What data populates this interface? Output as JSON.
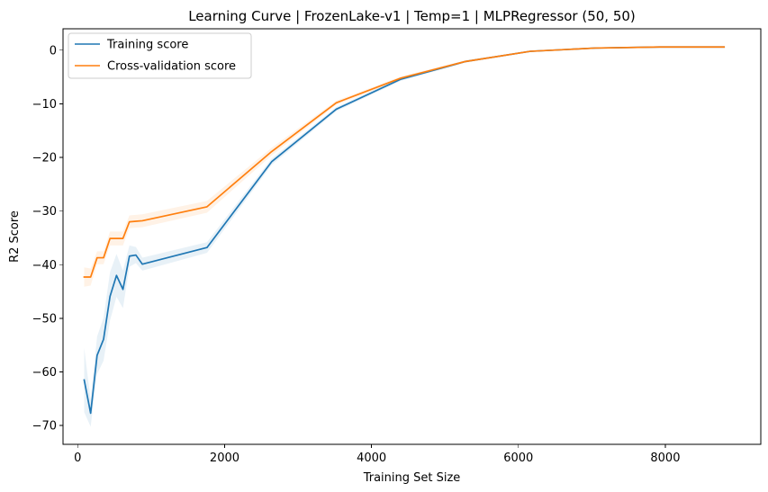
{
  "chart_data": {
    "type": "line",
    "title": "Learning Curve | FrozenLake-v1 | Temp=1 | MLPRegressor (50, 50)",
    "xlabel": "Training Set Size",
    "ylabel": "R2 Score",
    "xlim": [
      -200,
      9300
    ],
    "ylim": [
      -73.5,
      4
    ],
    "xticks": [
      0,
      2000,
      4000,
      6000,
      8000
    ],
    "yticks": [
      0,
      -10,
      -20,
      -30,
      -40,
      -50,
      -60,
      -70
    ],
    "tick_labels": {
      "x": [
        "0",
        "2000",
        "4000",
        "6000",
        "8000"
      ],
      "y": [
        "0",
        "−10",
        "−20",
        "−30",
        "−40",
        "−50",
        "−60",
        "−70"
      ]
    },
    "legend": {
      "placement": "top-left"
    },
    "grid": false,
    "series": [
      {
        "name": "Training score",
        "color": "#1f77b4",
        "band_color": "#1f77b4",
        "x": [
          88,
          176,
          264,
          352,
          440,
          528,
          616,
          704,
          792,
          880,
          1760,
          2640,
          3520,
          4400,
          5280,
          6160,
          7040,
          7920,
          8800
        ],
        "y": [
          -61.5,
          -67.7,
          -56.9,
          -53.9,
          -45.9,
          -42.0,
          -44.6,
          -38.4,
          -38.2,
          -39.9,
          -36.8,
          -20.8,
          -11.0,
          -5.4,
          -2.1,
          -0.2,
          0.4,
          0.6,
          0.6
        ],
        "band": [
          6.0,
          2.5,
          3.5,
          4.0,
          4.5,
          4.0,
          3.5,
          2.0,
          1.5,
          1.2,
          1.0,
          0.6,
          0.4,
          0.3,
          0.2,
          0.1,
          0.05,
          0.05,
          0.05
        ]
      },
      {
        "name": "Cross-validation score",
        "color": "#ff7f0e",
        "band_color": "#ff7f0e",
        "x": [
          88,
          176,
          264,
          352,
          440,
          528,
          616,
          704,
          792,
          880,
          1760,
          2640,
          3520,
          4400,
          5280,
          6160,
          7040,
          7920,
          8800
        ],
        "y": [
          -42.3,
          -42.3,
          -38.7,
          -38.7,
          -35.1,
          -35.1,
          -35.1,
          -32.0,
          -31.9,
          -31.8,
          -29.2,
          -18.9,
          -9.8,
          -5.2,
          -2.1,
          -0.2,
          0.4,
          0.6,
          0.6
        ],
        "band": [
          1.8,
          1.6,
          1.2,
          1.2,
          1.3,
          1.3,
          1.3,
          1.2,
          1.2,
          1.2,
          1.1,
          0.7,
          0.4,
          0.3,
          0.2,
          0.1,
          0.05,
          0.05,
          0.05
        ]
      }
    ]
  }
}
